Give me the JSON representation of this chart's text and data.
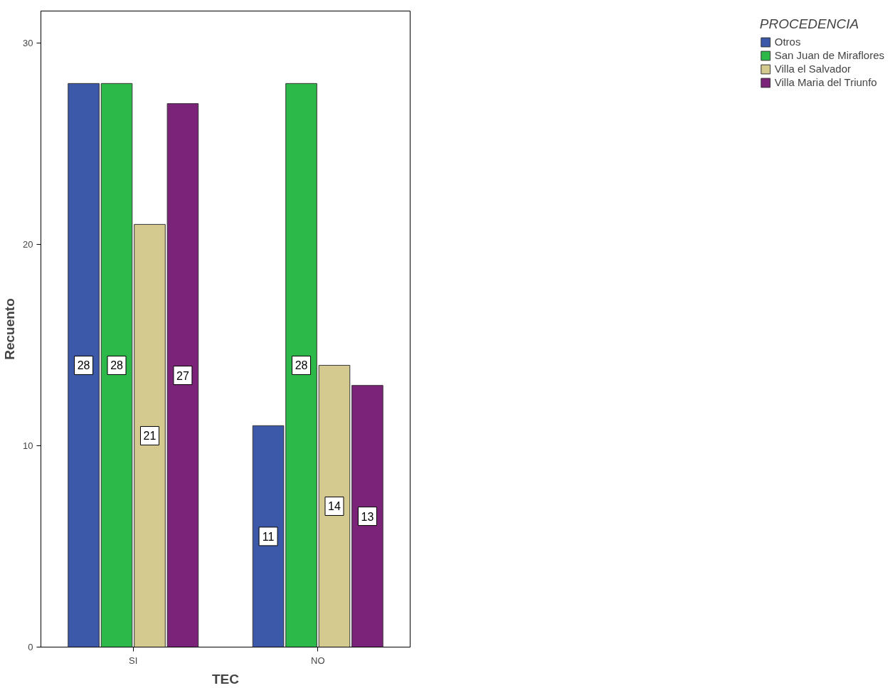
{
  "chart_data": {
    "type": "bar",
    "xlabel": "TEC",
    "ylabel": "Recuento",
    "legend_title": "PROCEDENCIA",
    "categories": [
      "SI",
      "NO"
    ],
    "series": [
      {
        "name": "Otros",
        "color": "#3c58a8",
        "values": [
          28,
          11
        ]
      },
      {
        "name": "San Juan de Miraflores",
        "color": "#2db84a",
        "values": [
          28,
          28
        ]
      },
      {
        "name": "Villa el Salvador",
        "color": "#d4c98f",
        "values": [
          21,
          14
        ]
      },
      {
        "name": "Villa Maria del Triunfo",
        "color": "#7a2378",
        "values": [
          27,
          13
        ]
      }
    ],
    "ylim": [
      0,
      31.6
    ],
    "yticks": [
      0,
      10,
      20,
      30
    ],
    "grid": false,
    "legend": "right",
    "data_labels": true
  }
}
